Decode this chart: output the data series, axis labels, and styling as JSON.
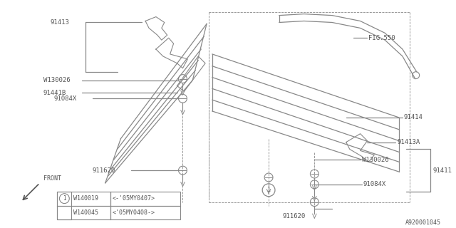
{
  "bg_color": "#ffffff",
  "line_color": "#888888",
  "text_color": "#555555",
  "footer": "A920001045",
  "legend_rows": [
    [
      "W140019",
      "<-'05MY0407>"
    ],
    [
      "W140045",
      "<'05MY0408->"
    ]
  ]
}
